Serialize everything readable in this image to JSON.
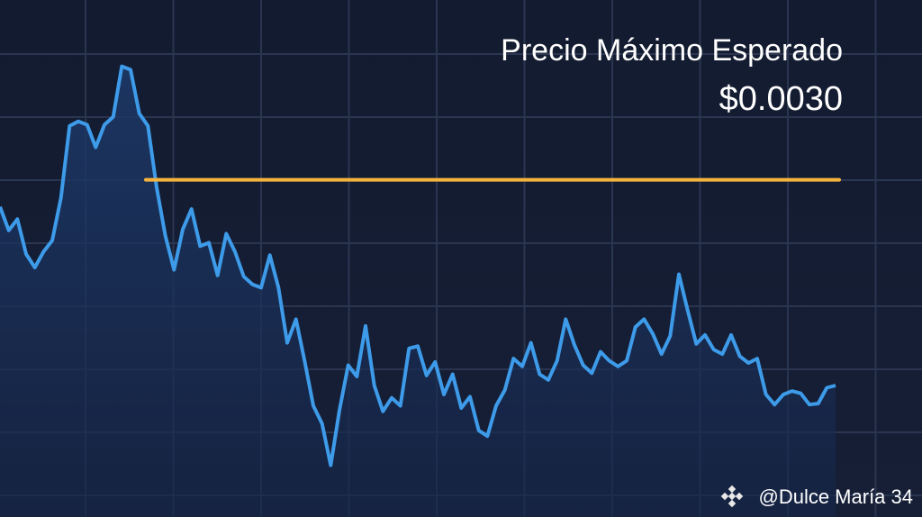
{
  "chart_data": {
    "type": "line",
    "values": [
      0.00276,
      0.00255,
      0.00265,
      0.00234,
      0.00222,
      0.00236,
      0.00246,
      0.00284,
      0.00348,
      0.00352,
      0.00349,
      0.00329,
      0.00349,
      0.00356,
      0.00401,
      0.00398,
      0.00359,
      0.00348,
      0.00293,
      0.0025,
      0.0022,
      0.00256,
      0.00274,
      0.00241,
      0.00244,
      0.00215,
      0.00252,
      0.00236,
      0.00214,
      0.00207,
      0.00204,
      0.00233,
      0.00204,
      0.00155,
      0.00176,
      0.00139,
      0.00099,
      0.00083,
      0.00046,
      0.00095,
      0.00135,
      0.00125,
      0.0017,
      0.00117,
      0.00094,
      0.00106,
      0.00099,
      0.0015,
      0.00152,
      0.00126,
      0.00138,
      0.00109,
      0.00127,
      0.00097,
      0.00107,
      0.00077,
      0.00072,
      0.00099,
      0.00113,
      0.00141,
      0.00134,
      0.00155,
      0.00127,
      0.00122,
      0.00139,
      0.00176,
      0.00153,
      0.00135,
      0.00128,
      0.00147,
      0.00139,
      0.00134,
      0.00139,
      0.00169,
      0.00176,
      0.00163,
      0.00145,
      0.00161,
      0.00216,
      0.00184,
      0.00154,
      0.00162,
      0.00149,
      0.00145,
      0.00162,
      0.00143,
      0.00137,
      0.00141,
      0.00109,
      0.001,
      0.00109,
      0.00112,
      0.0011,
      0.001,
      0.00101,
      0.00115,
      0.00117
    ],
    "color": "#3d9be9",
    "ylim": [
      0,
      0.0046
    ],
    "grid": true,
    "reference_line": {
      "label": "Precio Máximo Esperado",
      "value": 0.003,
      "value_label": "$0.0030",
      "color": "#f4b43c"
    },
    "watermark": "@Dulce María 34"
  }
}
